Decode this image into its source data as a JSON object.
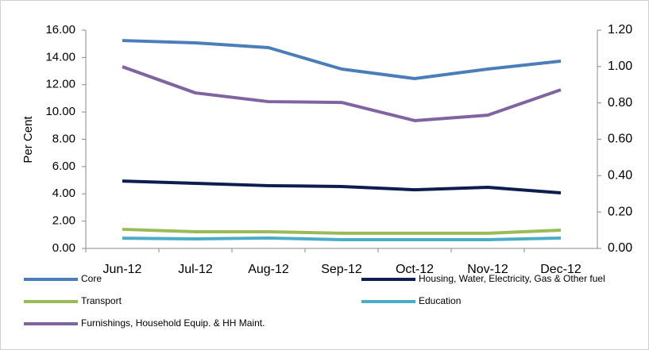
{
  "chart_data": {
    "type": "line",
    "y_label": "Per Cent",
    "categories": [
      "Jun-12",
      "Jul-12",
      "Aug-12",
      "Sep-12",
      "Oct-12",
      "Nov-12",
      "Dec-12"
    ],
    "ylim": [
      0,
      16
    ],
    "yticks": [
      {
        "value": 0,
        "label": "0.00"
      },
      {
        "value": 2,
        "label": "2.00"
      },
      {
        "value": 4,
        "label": "4.00"
      },
      {
        "value": 6,
        "label": "6.00"
      },
      {
        "value": 8,
        "label": "8.00"
      },
      {
        "value": 10,
        "label": "10.00"
      },
      {
        "value": 12,
        "label": "12.00"
      },
      {
        "value": 14,
        "label": "14.00"
      },
      {
        "value": 16,
        "label": "16.00"
      }
    ],
    "y2lim": [
      0,
      1.2
    ],
    "y2ticks": [
      {
        "value": 0,
        "label": "0.00"
      },
      {
        "value": 0.2,
        "label": "0.20"
      },
      {
        "value": 0.4,
        "label": "0.40"
      },
      {
        "value": 0.6,
        "label": "0.60"
      },
      {
        "value": 0.8,
        "label": "0.80"
      },
      {
        "value": 1,
        "label": "1.00"
      },
      {
        "value": 1.2,
        "label": "1.20"
      }
    ],
    "series": [
      {
        "name": "Core",
        "color": "#4a7ebb",
        "values": [
          15.24,
          15.07,
          14.72,
          13.15,
          12.45,
          13.15,
          13.73
        ]
      },
      {
        "name": "Housing, Water, Electricity, Gas & Other fuel",
        "color": "#0c1d4f",
        "values": [
          4.94,
          4.77,
          4.6,
          4.54,
          4.3,
          4.48,
          4.07
        ]
      },
      {
        "name": "Transport",
        "color": "#9bbb59",
        "values": [
          1.4,
          1.22,
          1.22,
          1.11,
          1.11,
          1.11,
          1.34
        ]
      },
      {
        "name": "Education",
        "color": "#4bacc6",
        "values": [
          0.75,
          0.7,
          0.76,
          0.64,
          0.64,
          0.64,
          0.76
        ]
      },
      {
        "name": "Furnishings, Household Equip. & HH Maint.",
        "color": "#8064a2",
        "values": [
          13.32,
          11.4,
          10.76,
          10.7,
          9.37,
          9.77,
          11.63
        ]
      }
    ]
  }
}
